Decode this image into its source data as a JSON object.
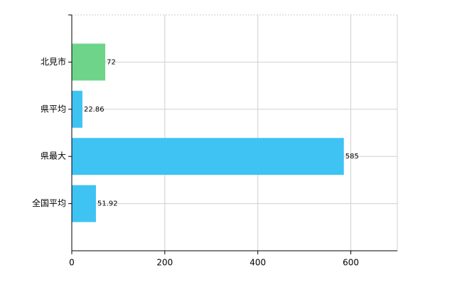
{
  "chart_data": {
    "type": "bar",
    "orientation": "horizontal",
    "categories": [
      "北見市",
      "県平均",
      "県最大",
      "全国平均"
    ],
    "values": [
      72,
      22.86,
      585,
      51.92
    ],
    "colors": [
      "#6dd48a",
      "#3ec3f3",
      "#3ec3f3",
      "#3ec3f3"
    ],
    "xlim": [
      0,
      700
    ],
    "xticks": [
      0,
      200,
      400,
      600
    ],
    "grid": true
  }
}
